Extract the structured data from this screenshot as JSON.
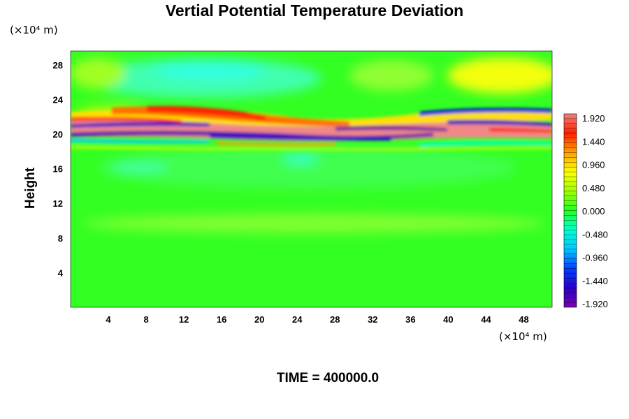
{
  "chart_data": {
    "type": "heatmap",
    "title": "Vertial Potential Temperature Deviation",
    "ylabel": "Height",
    "y_unit": "(×10⁴ m)",
    "x_unit": "(×10⁴ m)",
    "x_ticks": [
      4,
      8,
      12,
      16,
      20,
      24,
      28,
      32,
      36,
      40,
      44,
      48
    ],
    "y_ticks": [
      4,
      8,
      12,
      16,
      20,
      24,
      28
    ],
    "xlim": [
      0,
      51
    ],
    "ylim": [
      0,
      29.6
    ],
    "colorbar": {
      "labels": [
        "1.920",
        "1.440",
        "0.960",
        "0.480",
        "0.000",
        "-0.480",
        "-0.960",
        "-1.440",
        "-1.920"
      ],
      "range": [
        -1.92,
        1.92
      ],
      "colors": [
        "#7a00a8",
        "#2a00c8",
        "#0040ff",
        "#00c8ff",
        "#00ffd0",
        "#22ff22",
        "#a0ff00",
        "#ffff00",
        "#ffa000",
        "#ff2000",
        "#f08080"
      ]
    },
    "field_features": [
      {
        "name": "background",
        "value": 0.05
      },
      {
        "name": "upper-left cyan region",
        "x_range": [
          8,
          28
        ],
        "y_range": [
          25,
          29.6
        ],
        "value": -0.6
      },
      {
        "name": "upper-right yellow region",
        "x_range": [
          42,
          51
        ],
        "y_range": [
          25,
          29.6
        ],
        "value": 0.7
      },
      {
        "name": "oscillating band",
        "y_range": [
          19.5,
          22.5
        ],
        "value_range": [
          -1.92,
          1.92
        ]
      },
      {
        "name": "upper orange band",
        "x_range": [
          8,
          32
        ],
        "y_range": [
          21.5,
          23.5
        ],
        "value": 1.1
      },
      {
        "name": "upper blue band",
        "x_range": [
          38,
          51
        ],
        "y_range": [
          21.5,
          23.5
        ],
        "value": -1.4
      }
    ],
    "time_label": "TIME = 400000.0"
  }
}
